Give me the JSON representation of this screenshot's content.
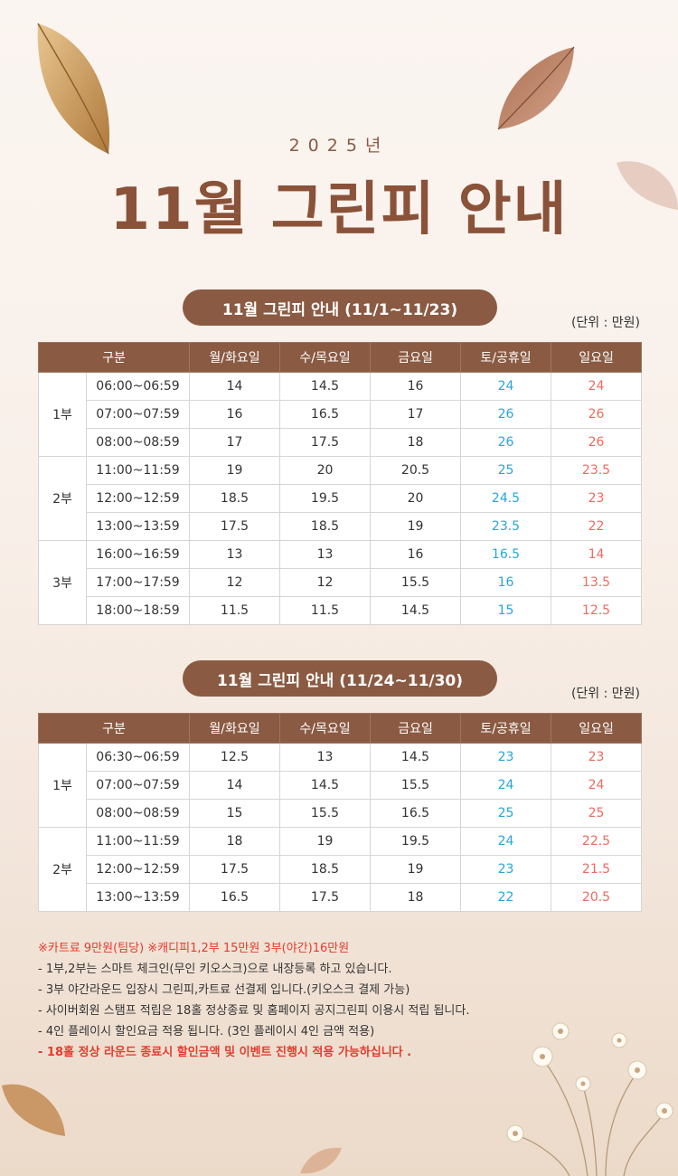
{
  "header": {
    "year": "2025년",
    "title": "11월 그린피 안내"
  },
  "table_columns": [
    "구분",
    "월/화요일",
    "수/목요일",
    "금요일",
    "토/공휴일",
    "일요일"
  ],
  "unit_label": "(단위 : 만원)",
  "colors": {
    "brown": "#8b5a42",
    "title": "#8a5238",
    "saturday": "#2aa5d6",
    "sunday": "#ef6a5f",
    "notice_red": "#e53b2c"
  },
  "section1": {
    "pill": "11월 그린피 안내 (11/1~11/23)",
    "groups": [
      {
        "part": "1부",
        "rows": [
          {
            "time": "06:00~06:59",
            "mon_tue": "14",
            "wed_thu": "14.5",
            "fri": "16",
            "sat_hol": "24",
            "sun": "24"
          },
          {
            "time": "07:00~07:59",
            "mon_tue": "16",
            "wed_thu": "16.5",
            "fri": "17",
            "sat_hol": "26",
            "sun": "26"
          },
          {
            "time": "08:00~08:59",
            "mon_tue": "17",
            "wed_thu": "17.5",
            "fri": "18",
            "sat_hol": "26",
            "sun": "26"
          }
        ]
      },
      {
        "part": "2부",
        "rows": [
          {
            "time": "11:00~11:59",
            "mon_tue": "19",
            "wed_thu": "20",
            "fri": "20.5",
            "sat_hol": "25",
            "sun": "23.5"
          },
          {
            "time": "12:00~12:59",
            "mon_tue": "18.5",
            "wed_thu": "19.5",
            "fri": "20",
            "sat_hol": "24.5",
            "sun": "23"
          },
          {
            "time": "13:00~13:59",
            "mon_tue": "17.5",
            "wed_thu": "18.5",
            "fri": "19",
            "sat_hol": "23.5",
            "sun": "22"
          }
        ]
      },
      {
        "part": "3부",
        "rows": [
          {
            "time": "16:00~16:59",
            "mon_tue": "13",
            "wed_thu": "13",
            "fri": "16",
            "sat_hol": "16.5",
            "sun": "14"
          },
          {
            "time": "17:00~17:59",
            "mon_tue": "12",
            "wed_thu": "12",
            "fri": "15.5",
            "sat_hol": "16",
            "sun": "13.5"
          },
          {
            "time": "18:00~18:59",
            "mon_tue": "11.5",
            "wed_thu": "11.5",
            "fri": "14.5",
            "sat_hol": "15",
            "sun": "12.5"
          }
        ]
      }
    ]
  },
  "section2": {
    "pill": "11월 그린피 안내 (11/24~11/30)",
    "groups": [
      {
        "part": "1부",
        "rows": [
          {
            "time": "06:30~06:59",
            "mon_tue": "12.5",
            "wed_thu": "13",
            "fri": "14.5",
            "sat_hol": "23",
            "sun": "23"
          },
          {
            "time": "07:00~07:59",
            "mon_tue": "14",
            "wed_thu": "14.5",
            "fri": "15.5",
            "sat_hol": "24",
            "sun": "24"
          },
          {
            "time": "08:00~08:59",
            "mon_tue": "15",
            "wed_thu": "15.5",
            "fri": "16.5",
            "sat_hol": "25",
            "sun": "25"
          }
        ]
      },
      {
        "part": "2부",
        "rows": [
          {
            "time": "11:00~11:59",
            "mon_tue": "18",
            "wed_thu": "19",
            "fri": "19.5",
            "sat_hol": "24",
            "sun": "22.5"
          },
          {
            "time": "12:00~12:59",
            "mon_tue": "17.5",
            "wed_thu": "18.5",
            "fri": "19",
            "sat_hol": "23",
            "sun": "21.5"
          },
          {
            "time": "13:00~13:59",
            "mon_tue": "16.5",
            "wed_thu": "17.5",
            "fri": "18",
            "sat_hol": "22",
            "sun": "20.5"
          }
        ]
      }
    ]
  },
  "notes": {
    "line1": "※카트료 9만원(팀당)  ※캐디피1,2부 15만원 3부(야간)16만원",
    "line2": "- 1부,2부는 스마트 체크인(무인 키오스크)으로 내장등록 하고 있습니다.",
    "line3": "- 3부 야간라운드 입장시 그린피,카트료 선결제 입니다.(키오스크 결제 가능)",
    "line4": "- 사이버회원 스탬프 적립은 18홀 정상종료 및 홈페이지 공지그린피 이용시 적립 됩니다.",
    "line5": "- 4인 플레이시 할인요금 적용 됩니다. (3인 플레이시 4인 금액 적용)",
    "line6": "- 18홀 정상 라운드 종료시 할인금액 및 이벤트 진행시 적용 가능하십니다 ."
  }
}
